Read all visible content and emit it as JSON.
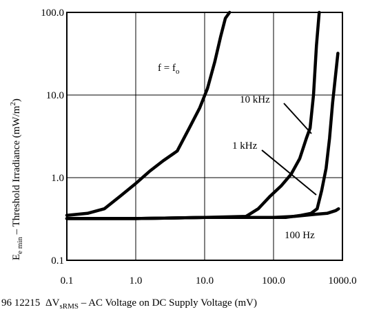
{
  "chart_data": {
    "type": "line",
    "x_scale": "log",
    "y_scale": "log",
    "xlim": [
      0.1,
      1000.0
    ],
    "ylim": [
      0.1,
      100.0
    ],
    "grid": true,
    "x_ticks": [
      "0.1",
      "1.0",
      "10.0",
      "100.0",
      "1000.0"
    ],
    "y_ticks": [
      "0.1",
      "1.0",
      "10.0",
      "100.0"
    ],
    "xlabel": {
      "delta": "ΔV",
      "sub": "sRMS",
      "sep": " – ",
      "text": "AC Voltage on DC Supply Voltage (mV)"
    },
    "ylabel": {
      "main": "E",
      "sub": "e min",
      "sep": "  –  ",
      "text": "Threshold Irradiance (mW/m",
      "sup": "2",
      "close": ")"
    },
    "figure_id": "96 12215",
    "series": [
      {
        "name": "f = f",
        "name_sub": "o",
        "x": [
          0.1,
          0.2,
          0.35,
          0.6,
          1.0,
          1.6,
          2.5,
          4.0,
          6.0,
          8.5,
          11.0,
          14.0,
          17.0,
          20.0,
          23.0
        ],
        "y": [
          0.35,
          0.37,
          0.42,
          0.6,
          0.85,
          1.2,
          1.6,
          2.1,
          4.0,
          7.0,
          12.0,
          25.0,
          50.0,
          85.0,
          100.0
        ]
      },
      {
        "name": "10 kHz",
        "x": [
          0.1,
          1.0,
          10.0,
          40.0,
          60.0,
          90.0,
          130.0,
          180.0,
          240.0,
          300.0,
          340.0,
          380.0,
          420.0,
          460.0
        ],
        "y": [
          0.32,
          0.32,
          0.33,
          0.34,
          0.42,
          0.6,
          0.8,
          1.1,
          1.7,
          3.0,
          4.0,
          10.0,
          40.0,
          100.0
        ]
      },
      {
        "name": "1 kHz",
        "x": [
          0.1,
          1.0,
          10.0,
          50.0,
          150.0,
          250.0,
          350.0,
          430.0,
          500.0,
          580.0,
          650.0,
          720.0,
          780.0,
          860.0
        ],
        "y": [
          0.32,
          0.32,
          0.33,
          0.33,
          0.33,
          0.35,
          0.37,
          0.42,
          0.7,
          1.3,
          3.0,
          8.0,
          15.0,
          32.0
        ]
      },
      {
        "name": "100 Hz",
        "x": [
          0.1,
          1.0,
          10.0,
          50.0,
          100.0,
          200.0,
          400.0,
          600.0,
          800.0,
          880.0
        ],
        "y": [
          0.32,
          0.32,
          0.33,
          0.33,
          0.33,
          0.34,
          0.36,
          0.37,
          0.4,
          0.42
        ]
      }
    ],
    "annotations": [
      {
        "text": "f = f",
        "sub": "o"
      },
      {
        "text": "10 kHz"
      },
      {
        "text": "1 kHz"
      },
      {
        "text": "100 Hz"
      }
    ]
  }
}
